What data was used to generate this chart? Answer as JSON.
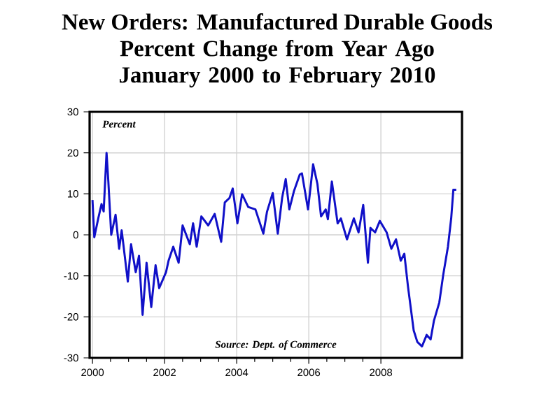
{
  "chart_data": {
    "type": "line",
    "title": "New Orders: Manufactured Durable Goods",
    "subtitle": "Percent Change from Year Ago January 2000 to February 2010",
    "annotations": [
      "Percent",
      "Source: Dept. of Commerce"
    ],
    "x": [
      2000.0,
      2000.05,
      2000.16,
      2000.25,
      2000.31,
      2000.39,
      2000.44,
      2000.52,
      2000.64,
      2000.74,
      2000.81,
      2000.98,
      2001.07,
      2001.2,
      2001.29,
      2001.39,
      2001.5,
      2001.63,
      2001.75,
      2001.85,
      2002.04,
      2002.11,
      2002.24,
      2002.39,
      2002.5,
      2002.7,
      2002.79,
      2002.89,
      2003.02,
      2003.21,
      2003.39,
      2003.57,
      2003.67,
      2003.8,
      2003.89,
      2004.02,
      2004.15,
      2004.32,
      2004.52,
      2004.74,
      2004.84,
      2005.0,
      2005.14,
      2005.26,
      2005.36,
      2005.46,
      2005.59,
      2005.75,
      2005.81,
      2005.98,
      2006.12,
      2006.24,
      2006.34,
      2006.47,
      2006.53,
      2006.64,
      2006.8,
      2006.89,
      2007.06,
      2007.25,
      2007.38,
      2007.51,
      2007.64,
      2007.71,
      2007.84,
      2007.97,
      2008.16,
      2008.29,
      2008.42,
      2008.55,
      2008.65,
      2008.75,
      2008.91,
      2009.01,
      2009.14,
      2009.27,
      2009.38,
      2009.47,
      2009.62,
      2009.73,
      2009.86,
      2009.95,
      2010.01,
      2010.09
    ],
    "series": [
      {
        "color": "#1010c8",
        "values": [
          8.5,
          -0.6,
          4,
          7.5,
          5.7,
          20,
          13,
          0,
          4.9,
          -3.4,
          1.1,
          -11.4,
          -2.3,
          -9.1,
          -5.1,
          -19.5,
          -6.8,
          -17.6,
          -7.4,
          -13,
          -9.1,
          -6.3,
          -2.9,
          -6.8,
          2.3,
          -2.3,
          2.8,
          -2.9,
          4.5,
          2.3,
          5.1,
          -1.7,
          7.9,
          9,
          11.3,
          2.8,
          9.9,
          6.8,
          6.2,
          0.3,
          5.6,
          10.2,
          0.3,
          9,
          13.6,
          6.2,
          10.7,
          14.7,
          15,
          6.2,
          17.2,
          12.4,
          4.5,
          6.2,
          3.8,
          13,
          2.8,
          4,
          -1.1,
          4,
          0.6,
          7.3,
          -6.8,
          1.7,
          0.6,
          3.4,
          0.6,
          -3.4,
          -1.1,
          -6.3,
          -4.6,
          -12.5,
          -23.3,
          -26.1,
          -27.2,
          -24.4,
          -25.5,
          -21,
          -16.5,
          -9.7,
          -2.9,
          4,
          11,
          11
        ]
      }
    ],
    "xlim": [
      1999.92,
      2010.25
    ],
    "ylim": [
      -30,
      30
    ],
    "xticks": [
      2000,
      2002,
      2004,
      2006,
      2008
    ],
    "yticks": [
      -30,
      -20,
      -10,
      0,
      10,
      20,
      30
    ],
    "grid": true,
    "line_style": "solid"
  }
}
